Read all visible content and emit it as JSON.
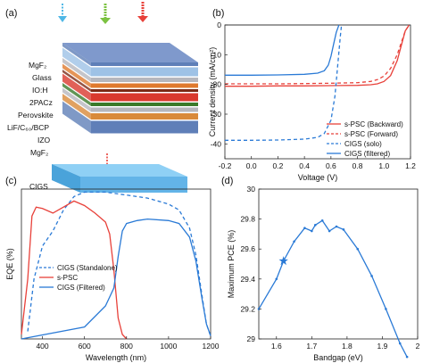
{
  "panel_labels": [
    "(a)",
    "(b)",
    "(c)",
    "(d)"
  ],
  "panel_a": {
    "layers": [
      "MgF₂",
      "Glass",
      "IO:H",
      "2PACz",
      "Perovskite",
      "LiF/C₆₀/BCP",
      "IZO",
      "MgF₂"
    ],
    "bottom_cell": "CIGS",
    "layer_colors": {
      "mgf2": "#5f7fb8",
      "glass": "#9ec2e6",
      "ioh": "#b6b7bd",
      "pacz": "#e07a2e",
      "perovskite_dark": "#7a2a16",
      "perovskite": "#d9392e",
      "green": "#3a7a2a",
      "izo": "#d98a3a",
      "cigs": "#63b4e8"
    },
    "light_colors": {
      "left": "#4fb7e6",
      "middle": "#7cc242",
      "right": "#e8413a"
    }
  },
  "chart_data": [
    {
      "panel": "b",
      "type": "line",
      "xlabel": "Voltage (V)",
      "ylabel": "Current density (mA/cm²)",
      "xlim": [
        -0.2,
        1.2
      ],
      "ylim": [
        -45,
        0
      ],
      "xticks": [
        "-0.2",
        "0.0",
        "0.2",
        "0.4",
        "0.6",
        "0.8",
        "1.0",
        "1.2"
      ],
      "yticks": [
        "0",
        "-10",
        "-20",
        "-30",
        "-40"
      ],
      "legend_position": "bottom-right",
      "series": [
        {
          "name": "s-PSC (Backward)",
          "color": "#e8413a",
          "style": "solid",
          "x": [
            -0.2,
            0.0,
            0.2,
            0.4,
            0.6,
            0.8,
            0.9,
            0.95,
            1.0,
            1.05,
            1.1,
            1.13,
            1.16,
            1.19
          ],
          "y": [
            -20.6,
            -20.6,
            -20.5,
            -20.5,
            -20.4,
            -20.3,
            -20.1,
            -19.8,
            -19.0,
            -17.0,
            -12.0,
            -7.0,
            -2.0,
            0.0
          ]
        },
        {
          "name": "s-PSC (Forward)",
          "color": "#e8413a",
          "style": "dashed",
          "x": [
            -0.2,
            0.0,
            0.2,
            0.4,
            0.6,
            0.8,
            0.9,
            0.95,
            1.0,
            1.05,
            1.1,
            1.13,
            1.16,
            1.19
          ],
          "y": [
            -19.8,
            -19.8,
            -19.8,
            -19.7,
            -19.6,
            -19.4,
            -19.0,
            -18.4,
            -17.2,
            -14.6,
            -10.0,
            -6.0,
            -2.0,
            0.0
          ]
        },
        {
          "name": "CIGS (solo)",
          "color": "#2a7ad6",
          "style": "dashed",
          "x": [
            -0.2,
            0.0,
            0.2,
            0.4,
            0.5,
            0.55,
            0.6,
            0.63,
            0.65,
            0.67,
            0.68
          ],
          "y": [
            -38.8,
            -38.8,
            -38.7,
            -38.4,
            -37.8,
            -36.5,
            -32.0,
            -24.0,
            -14.0,
            -4.0,
            0.0
          ]
        },
        {
          "name": "CIGS (filtered)",
          "color": "#2a7ad6",
          "style": "solid",
          "x": [
            -0.2,
            0.0,
            0.2,
            0.4,
            0.5,
            0.55,
            0.58,
            0.6,
            0.62,
            0.64,
            0.66
          ],
          "y": [
            -16.9,
            -16.9,
            -16.8,
            -16.6,
            -16.2,
            -15.4,
            -13.5,
            -10.5,
            -6.5,
            -2.5,
            0.0
          ]
        }
      ]
    },
    {
      "panel": "c",
      "type": "line",
      "xlabel": "Wavelength (nm)",
      "ylabel": "EQE (%)",
      "xlim": [
        300,
        1200
      ],
      "ylim": [
        0,
        100
      ],
      "xticks": [
        "400",
        "600",
        "800",
        "1000",
        "1200"
      ],
      "yticks": [],
      "legend_position": "center-left",
      "series": [
        {
          "name": "CIGS (Standalone)",
          "color": "#2a7ad6",
          "style": "dashed",
          "x": [
            330,
            360,
            400,
            450,
            500,
            550,
            600,
            700,
            800,
            900,
            1000,
            1050,
            1100,
            1130,
            1160,
            1180,
            1200
          ],
          "y": [
            5,
            40,
            62,
            72,
            86,
            95,
            98,
            98,
            96,
            94,
            90,
            86,
            74,
            56,
            28,
            10,
            2
          ]
        },
        {
          "name": "s-PSC",
          "color": "#e8413a",
          "style": "solid",
          "x": [
            300,
            330,
            350,
            370,
            400,
            450,
            500,
            550,
            600,
            650,
            700,
            720,
            740,
            760,
            780,
            800
          ],
          "y": [
            3,
            40,
            82,
            88,
            87,
            84,
            88,
            92,
            89,
            84,
            78,
            70,
            46,
            14,
            3,
            0
          ]
        },
        {
          "name": "CIGS (Filtered)",
          "color": "#2a7ad6",
          "style": "solid",
          "x": [
            300,
            600,
            700,
            720,
            740,
            760,
            780,
            800,
            850,
            900,
            1000,
            1050,
            1100,
            1130,
            1160,
            1180,
            1200
          ],
          "y": [
            0,
            8,
            22,
            28,
            34,
            55,
            72,
            77,
            79,
            80,
            79,
            77,
            68,
            52,
            26,
            10,
            2
          ]
        }
      ]
    },
    {
      "panel": "d",
      "type": "line",
      "xlabel": "Bandgap (eV)",
      "ylabel": "Maximum PCE (%)",
      "xlim": [
        1.55,
        2.0
      ],
      "ylim": [
        29.0,
        30.0
      ],
      "xticks": [
        "1.6",
        "1.7",
        "1.8",
        "1.9",
        "2"
      ],
      "yticks": [
        "29",
        "29.2",
        "29.4",
        "29.6",
        "29.8",
        "30"
      ],
      "series": [
        {
          "name": "",
          "color": "#2a7ad6",
          "style": "solid",
          "x": [
            1.55,
            1.6,
            1.62,
            1.65,
            1.68,
            1.7,
            1.71,
            1.73,
            1.75,
            1.77,
            1.79,
            1.83,
            1.87,
            1.91,
            1.95,
            1.97
          ],
          "y": [
            29.2,
            29.4,
            29.52,
            29.65,
            29.74,
            29.72,
            29.76,
            29.79,
            29.72,
            29.75,
            29.73,
            29.6,
            29.42,
            29.2,
            28.97,
            28.88
          ]
        }
      ],
      "star_marker": {
        "x": 1.62,
        "y": 29.52
      }
    }
  ]
}
